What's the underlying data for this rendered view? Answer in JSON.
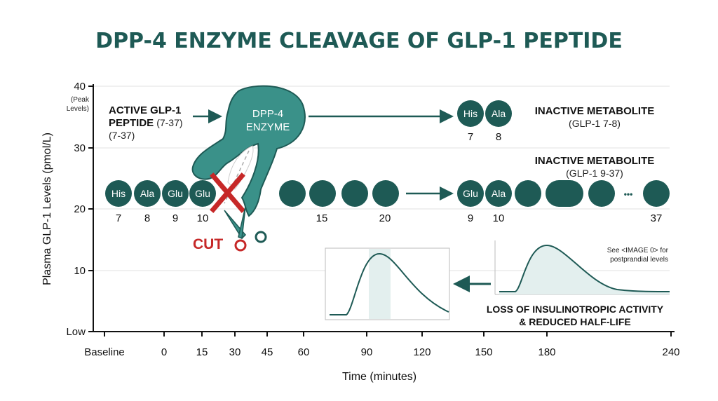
{
  "title": "DPP-4 ENZYME CLEAVAGE OF GLP-1 PEPTIDE",
  "y_axis": {
    "label": "Plasma GLP-1 Levels (pmol/L)",
    "ticks": [
      "40",
      "30",
      "20",
      "10",
      "Low"
    ],
    "peak_note_1": "(Peak",
    "peak_note_2": "Levels)"
  },
  "x_axis": {
    "label": "Time (minutes)",
    "ticks": [
      "Baseline",
      "0",
      "15",
      "30",
      "45",
      "60",
      "90",
      "120",
      "150",
      "180",
      "240"
    ]
  },
  "active_label": {
    "line1": "ACTIVE GLP-1",
    "line2": "PEPTIDE",
    "line2b": "(7-37)",
    "line3": "(7-37)"
  },
  "enzyme": {
    "line1": "DPP-4",
    "line2": "ENZYME"
  },
  "cut_label": "CUT",
  "peptide": {
    "residues": [
      "His",
      "Ala",
      "Glu",
      "Glu"
    ],
    "numbers": [
      "7",
      "8",
      "9",
      "10",
      "15",
      "20"
    ]
  },
  "metabolite_1": {
    "title": "INACTIVE METABOLITE",
    "sub": "(GLP-1 7-8)",
    "residues": [
      "His",
      "Ala"
    ],
    "numbers": [
      "7",
      "8"
    ]
  },
  "metabolite_2": {
    "title": "INACTIVE METABOLITE",
    "sub": "(GLP-1 9-37)",
    "residues": [
      "Glu",
      "Ala"
    ],
    "ellipsis": "•••",
    "numbers": [
      "9",
      "10",
      "37"
    ]
  },
  "inset_note": {
    "line1": "See <IMAGE 0> for",
    "line2": "postprandial levels"
  },
  "loss_label": {
    "line1": "LOSS OF INSULINOTROPIC ACTIVITY",
    "line2": "& REDUCED HALF-LIFE"
  },
  "colors": {
    "teal_dark": "#1e5a55",
    "teal_enzyme": "#3a9189",
    "red": "#c62828",
    "shade": "#e3efee"
  }
}
